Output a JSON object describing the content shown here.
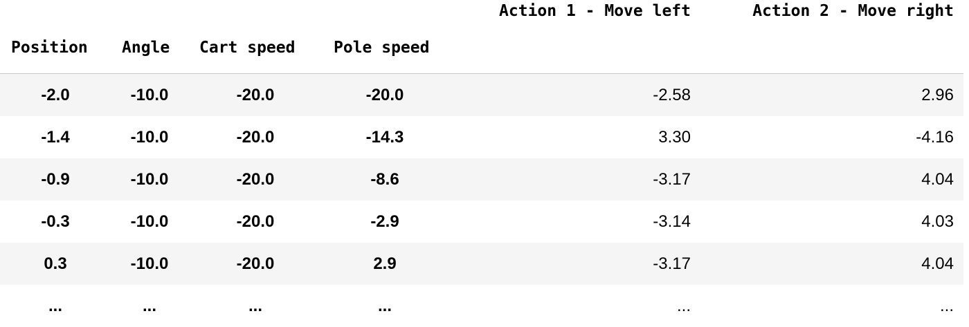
{
  "table": {
    "action_headers": [
      "Action 1 - Move left",
      "Action 2 - Move right"
    ],
    "index_headers": [
      "Position",
      "Angle",
      "Cart speed",
      "Pole speed"
    ],
    "rows": [
      {
        "index": [
          "-2.0",
          "-10.0",
          "-20.0",
          "-20.0"
        ],
        "values": [
          "-2.58",
          "2.96"
        ]
      },
      {
        "index": [
          "-1.4",
          "-10.0",
          "-20.0",
          "-14.3"
        ],
        "values": [
          "3.30",
          "-4.16"
        ]
      },
      {
        "index": [
          "-0.9",
          "-10.0",
          "-20.0",
          "-8.6"
        ],
        "values": [
          "-3.17",
          "4.04"
        ]
      },
      {
        "index": [
          "-0.3",
          "-10.0",
          "-20.0",
          "-2.9"
        ],
        "values": [
          "-3.14",
          "4.03"
        ]
      },
      {
        "index": [
          "0.3",
          "-10.0",
          "-20.0",
          "2.9"
        ],
        "values": [
          "-3.17",
          "4.04"
        ]
      }
    ],
    "ellipsis": "..."
  }
}
